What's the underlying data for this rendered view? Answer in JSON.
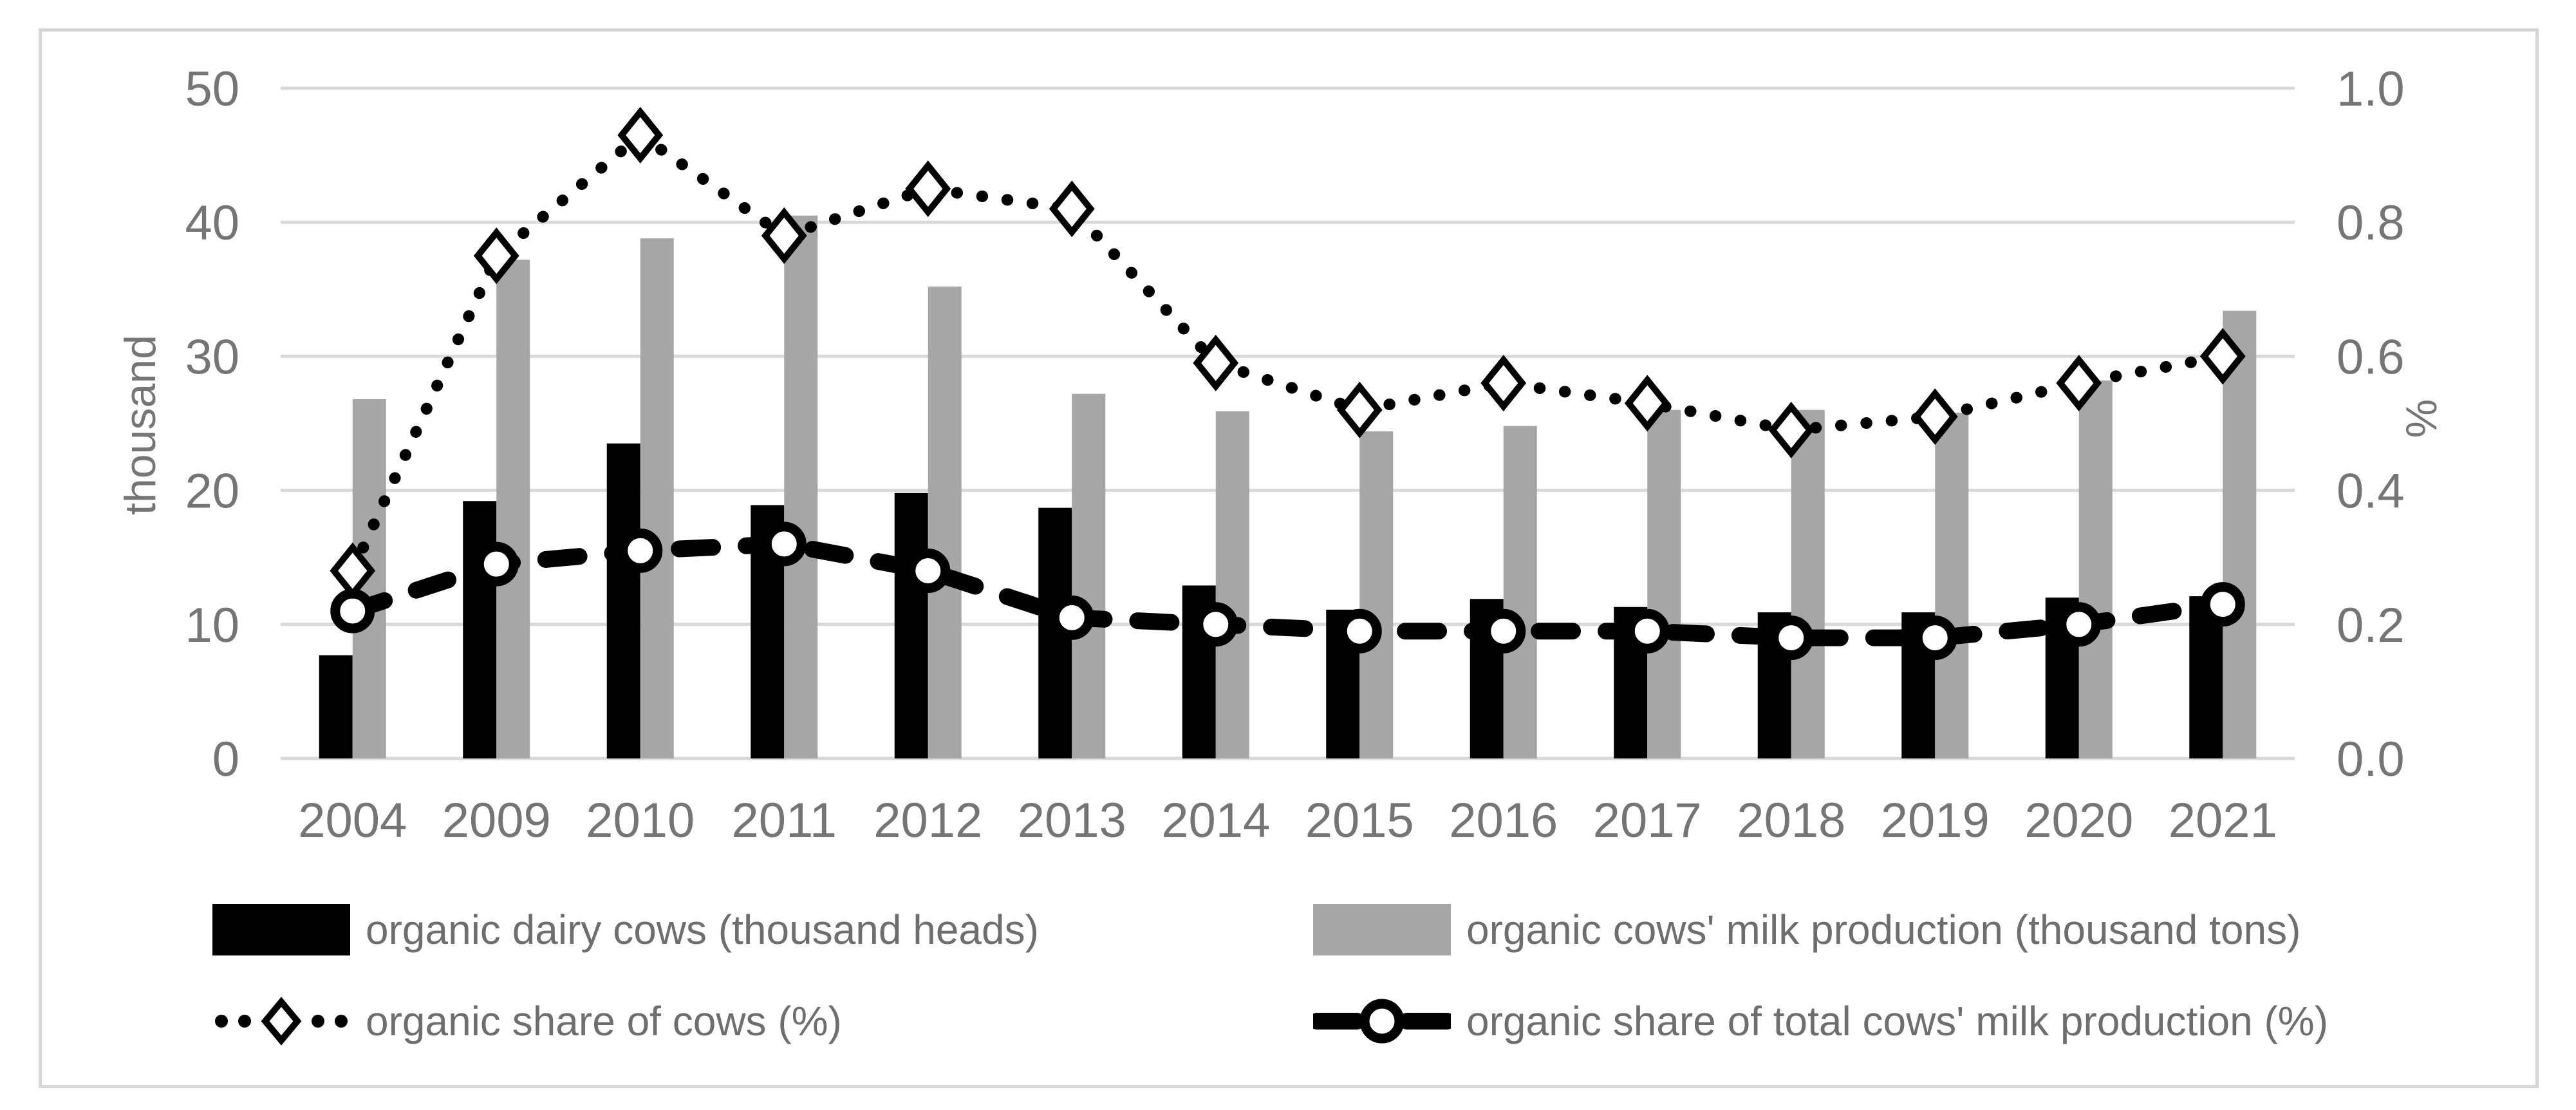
{
  "chart_data": {
    "type": "combo-bar-line",
    "categories": [
      "2004",
      "2009",
      "2010",
      "2011",
      "2012",
      "2013",
      "2014",
      "2015",
      "2016",
      "2017",
      "2018",
      "2019",
      "2020",
      "2021"
    ],
    "series": [
      {
        "name": "organic dairy cows (thousand heads)",
        "type": "bar",
        "axis": "left",
        "color": "#000000",
        "values": [
          7.7,
          19.2,
          23.5,
          18.9,
          19.8,
          18.7,
          12.9,
          11.1,
          11.9,
          11.3,
          10.9,
          10.9,
          12.0,
          12.1
        ]
      },
      {
        "name": "organic cows' milk production (thousand tons)",
        "type": "bar",
        "axis": "left",
        "color": "#a6a6a6",
        "values": [
          26.8,
          37.2,
          38.8,
          40.5,
          35.2,
          27.2,
          25.9,
          24.4,
          24.8,
          26.0,
          26.0,
          25.8,
          28.2,
          33.4
        ]
      },
      {
        "name": "organic share of cows (%)",
        "type": "line",
        "style": "dotted",
        "marker": "diamond",
        "axis": "right",
        "color": "#000000",
        "values": [
          0.28,
          0.75,
          0.93,
          0.78,
          0.85,
          0.82,
          0.59,
          0.52,
          0.56,
          0.53,
          0.49,
          0.51,
          0.56,
          0.6
        ]
      },
      {
        "name": "organic share of total cows' milk production (%)",
        "type": "line",
        "style": "dashed",
        "marker": "circle",
        "axis": "right",
        "color": "#000000",
        "values": [
          0.22,
          0.29,
          0.31,
          0.32,
          0.28,
          0.21,
          0.2,
          0.19,
          0.19,
          0.19,
          0.18,
          0.18,
          0.2,
          0.23
        ]
      }
    ],
    "left_axis": {
      "title": "thousand",
      "min": 0,
      "max": 50,
      "tick_labels": [
        "0",
        "10",
        "20",
        "30",
        "40",
        "50"
      ]
    },
    "right_axis": {
      "title": "%",
      "min": 0.0,
      "max": 1.0,
      "tick_labels": [
        "0.0",
        "0.2",
        "0.4",
        "0.6",
        "0.8",
        "1.0"
      ]
    },
    "grid": true,
    "legend_position": "bottom",
    "colors": {
      "grid": "#d9d9d9",
      "frame": "#d6d6d6",
      "axis_text": "#757575",
      "legend_text": "#6e6e6e"
    }
  }
}
